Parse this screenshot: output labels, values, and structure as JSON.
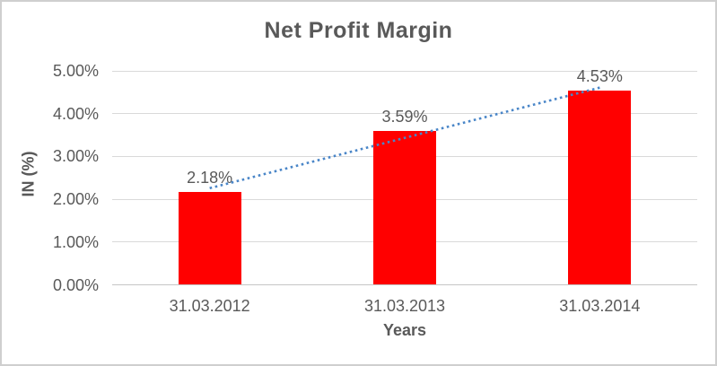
{
  "window": {
    "background": "#ffffff",
    "border_color": "#cfcfcf"
  },
  "chart_data": {
    "type": "bar",
    "title": "Net Profit Margin",
    "xlabel": "Years",
    "ylabel": "IN (%)",
    "categories": [
      "31.03.2012",
      "31.03.2013",
      "31.03.2014"
    ],
    "values": [
      2.18,
      3.59,
      4.53
    ],
    "data_labels": [
      "2.18%",
      "3.59%",
      "4.53%"
    ],
    "ylim": [
      0,
      5
    ],
    "ytick_step": 1,
    "ytick_labels": [
      "0.00%",
      "1.00%",
      "2.00%",
      "3.00%",
      "4.00%",
      "5.00%"
    ],
    "grid": true,
    "legend": "none",
    "bar_color": "#ff0000",
    "text_color": "#595959",
    "gridline_color": "#d9d9d9",
    "trendline": {
      "type": "linear",
      "style": "dotted",
      "color": "#4a86c8"
    }
  }
}
